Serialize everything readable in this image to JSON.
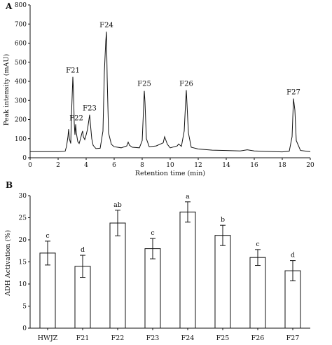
{
  "chart_data": [
    {
      "panel": "A",
      "type": "line",
      "xlabel": "Retention time (min)",
      "ylabel": "Peak intensity (mAU)",
      "xlim": [
        0,
        20
      ],
      "ylim": [
        0,
        800
      ],
      "xticks": [
        0,
        2,
        4,
        6,
        8,
        10,
        12,
        14,
        16,
        18,
        20
      ],
      "yticks": [
        0,
        100,
        200,
        300,
        400,
        500,
        600,
        700,
        800
      ],
      "grid": false,
      "x": [
        0,
        1,
        2,
        2.5,
        2.6,
        2.7,
        2.75,
        2.8,
        2.9,
        2.95,
        3.0,
        3.05,
        3.1,
        3.15,
        3.2,
        3.25,
        3.3,
        3.4,
        3.5,
        3.6,
        3.7,
        3.75,
        3.8,
        3.9,
        4.0,
        4.1,
        4.2,
        4.25,
        4.3,
        4.4,
        4.5,
        4.7,
        5.0,
        5.2,
        5.3,
        5.4,
        5.45,
        5.5,
        5.6,
        5.8,
        6.0,
        6.5,
        6.9,
        7.0,
        7.1,
        7.3,
        7.8,
        8.0,
        8.1,
        8.15,
        8.2,
        8.3,
        8.5,
        9.0,
        9.5,
        9.6,
        9.7,
        9.8,
        10.0,
        10.5,
        10.6,
        10.8,
        11.0,
        11.1,
        11.15,
        11.2,
        11.3,
        11.5,
        12.0,
        13.0,
        14.0,
        15.0,
        15.5,
        16.0,
        17.0,
        18.0,
        18.5,
        18.7,
        18.8,
        18.9,
        19.0,
        19.3,
        20.0
      ],
      "y": [
        32,
        32,
        32,
        34,
        60,
        110,
        150,
        100,
        75,
        220,
        320,
        423,
        340,
        180,
        120,
        175,
        130,
        85,
        75,
        100,
        130,
        140,
        110,
        95,
        120,
        150,
        200,
        225,
        180,
        100,
        65,
        48,
        50,
        140,
        450,
        610,
        660,
        420,
        130,
        70,
        58,
        52,
        62,
        82,
        65,
        55,
        52,
        90,
        260,
        350,
        290,
        100,
        58,
        62,
        78,
        110,
        90,
        70,
        52,
        62,
        72,
        60,
        140,
        290,
        354,
        280,
        130,
        55,
        46,
        40,
        38,
        36,
        42,
        36,
        33,
        31,
        35,
        110,
        310,
        250,
        90,
        38,
        32
      ],
      "peak_labels": [
        {
          "text": "F21",
          "x": 3.05,
          "y": 423
        },
        {
          "text": "F22",
          "x": 3.3,
          "y": 175
        },
        {
          "text": "F23",
          "x": 4.25,
          "y": 225
        },
        {
          "text": "F24",
          "x": 5.45,
          "y": 660
        },
        {
          "text": "F25",
          "x": 8.15,
          "y": 354
        },
        {
          "text": "F26",
          "x": 11.15,
          "y": 354
        },
        {
          "text": "F27",
          "x": 18.8,
          "y": 310
        }
      ]
    },
    {
      "panel": "B",
      "type": "bar",
      "xlabel": "",
      "ylabel": "ADH Activation  (%)",
      "ylim": [
        0,
        30
      ],
      "yticks": [
        0,
        5,
        10,
        15,
        20,
        25,
        30
      ],
      "grid": false,
      "categories": [
        "HWJZ",
        "F21",
        "F22",
        "F23",
        "F24",
        "F25",
        "F26",
        "F27"
      ],
      "values": [
        17.0,
        14.0,
        23.8,
        18.0,
        26.3,
        21.0,
        16.0,
        13.0
      ],
      "errors": [
        2.7,
        2.5,
        2.9,
        2.3,
        2.3,
        2.3,
        1.8,
        2.3
      ],
      "significance": [
        "c",
        "d",
        "ab",
        "c",
        "a",
        "b",
        "c",
        "d"
      ]
    }
  ]
}
